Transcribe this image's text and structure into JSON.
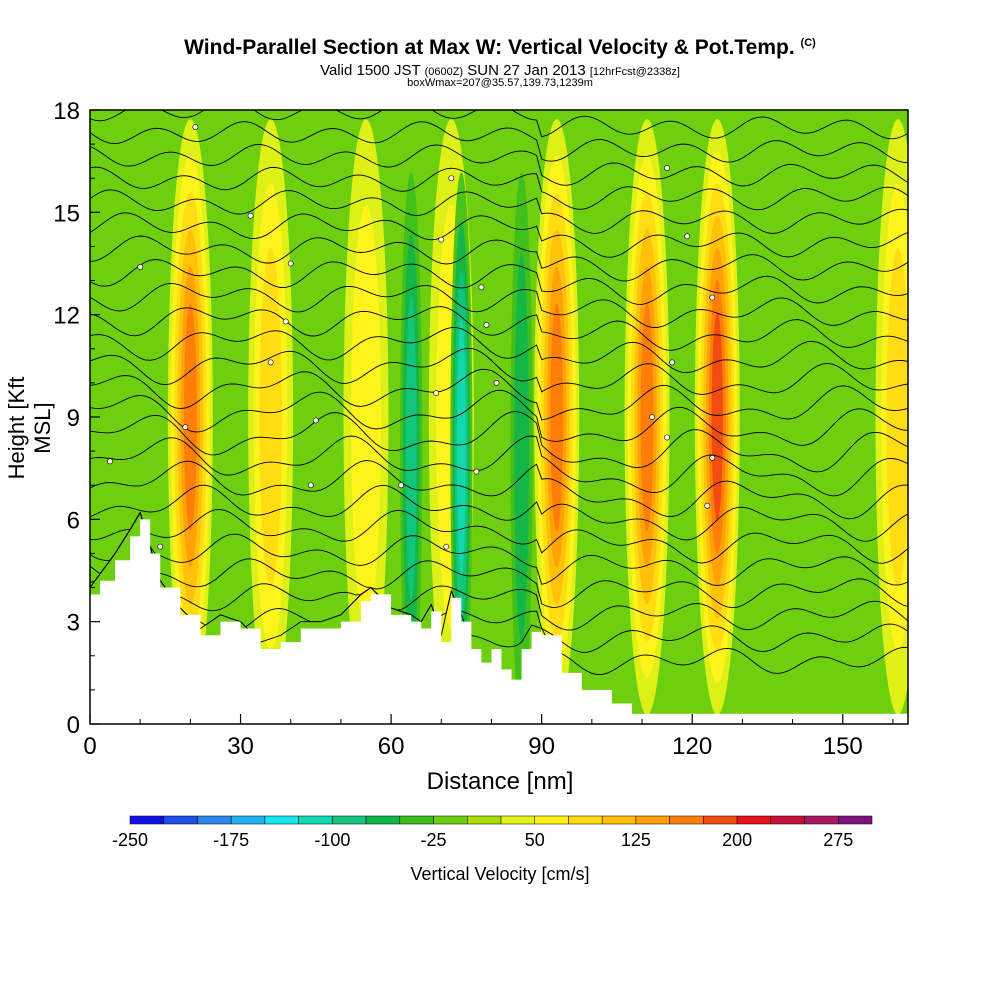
{
  "title": "Wind-Parallel Section at Max W: Vertical Velocity & Pot.Temp.",
  "title_mark": "(C)",
  "subtitle_valid": "Valid 1500 JST",
  "subtitle_zulu": "(0600Z)",
  "subtitle_date": "SUN 27 Jan 2013",
  "subtitle_fcst": "[12hrFcst@2338z]",
  "subtitle2": "boxWmax=207@35.57,139.73,1239m",
  "colors": {
    "colorbar": [
      "#1010e6",
      "#1e4fe8",
      "#2a84ea",
      "#20b2ef",
      "#17e6ef",
      "#14d9b4",
      "#12c67f",
      "#10b54a",
      "#3cbc1c",
      "#6dcf10",
      "#aadd07",
      "#e4f21a",
      "#fff21a",
      "#ffdb12",
      "#ffbf0a",
      "#ffa008",
      "#ff7c0a",
      "#f24912",
      "#e4121a",
      "#c7103c",
      "#a71863",
      "#7c127c"
    ],
    "field_low": "#6dcf10",
    "field_high": "#ffbf0a",
    "terrain": "#ffffff",
    "contour": "#000000"
  },
  "chart_data": {
    "type": "heatmap",
    "description_of_field": "vertical velocity shading with potential temperature contours",
    "xlabel": "Distance [nm]",
    "ylabel": "Height [Kft MSL]",
    "xlim": [
      0,
      163
    ],
    "ylim": [
      0,
      18
    ],
    "xticks": [
      0,
      30,
      60,
      90,
      120,
      150
    ],
    "yticks": [
      0,
      3,
      6,
      9,
      12,
      15,
      18
    ],
    "colorbar": {
      "label": "Vertical Velocity [cm/s]",
      "range": [
        -250,
        300
      ],
      "step": 25,
      "tick_values": [
        -250,
        -175,
        -100,
        -25,
        50,
        125,
        200,
        275
      ]
    },
    "updraft_columns": [
      {
        "x": 20,
        "peak_cm_s": 150
      },
      {
        "x": 36,
        "peak_cm_s": 75
      },
      {
        "x": 55,
        "peak_cm_s": 50
      },
      {
        "x": 72,
        "peak_cm_s": 50
      },
      {
        "x": 93,
        "peak_cm_s": 150
      },
      {
        "x": 111,
        "peak_cm_s": 150
      },
      {
        "x": 125,
        "peak_cm_s": 175
      },
      {
        "x": 161,
        "peak_cm_s": 75
      }
    ],
    "downdraft_columns": [
      {
        "x": 64,
        "min_cm_s": -75
      },
      {
        "x": 74,
        "min_cm_s": -100
      },
      {
        "x": 86,
        "min_cm_s": -50
      }
    ],
    "terrain_profile": {
      "x": [
        0,
        2,
        5,
        8,
        10,
        12,
        14,
        18,
        22,
        26,
        30,
        34,
        38,
        42,
        46,
        50,
        54,
        56,
        60,
        64,
        66,
        68,
        70,
        72,
        74,
        76,
        78,
        80,
        82,
        84,
        86,
        88,
        90,
        94,
        98,
        104,
        108,
        112,
        163
      ],
      "height_kft": [
        3.8,
        4.2,
        4.8,
        5.5,
        6.0,
        5.0,
        4.0,
        3.2,
        2.6,
        3.0,
        2.8,
        2.2,
        2.4,
        2.8,
        2.8,
        3.0,
        3.6,
        3.8,
        3.2,
        3.0,
        2.8,
        3.3,
        2.4,
        3.7,
        3.0,
        2.2,
        1.8,
        2.2,
        1.6,
        1.3,
        2.2,
        2.7,
        2.6,
        1.5,
        1.0,
        0.6,
        0.3,
        0.3,
        0.3
      ]
    },
    "theta_contour_labels": [
      {
        "x": 4,
        "y": 7.7
      },
      {
        "x": 10,
        "y": 13.4
      },
      {
        "x": 14,
        "y": 5.2
      },
      {
        "x": 19,
        "y": 8.7
      },
      {
        "x": 21,
        "y": 17.5
      },
      {
        "x": 32,
        "y": 14.9
      },
      {
        "x": 36,
        "y": 10.6
      },
      {
        "x": 39,
        "y": 11.8
      },
      {
        "x": 40,
        "y": 13.5
      },
      {
        "x": 44,
        "y": 7.0
      },
      {
        "x": 45,
        "y": 8.9
      },
      {
        "x": 62,
        "y": 7.0
      },
      {
        "x": 69,
        "y": 9.7
      },
      {
        "x": 70,
        "y": 14.2
      },
      {
        "x": 71,
        "y": 5.2
      },
      {
        "x": 72,
        "y": 16.0
      },
      {
        "x": 77,
        "y": 7.4
      },
      {
        "x": 78,
        "y": 12.8
      },
      {
        "x": 79,
        "y": 11.7
      },
      {
        "x": 81,
        "y": 10.0
      },
      {
        "x": 112,
        "y": 9.0
      },
      {
        "x": 115,
        "y": 16.3
      },
      {
        "x": 115,
        "y": 8.4
      },
      {
        "x": 116,
        "y": 10.6
      },
      {
        "x": 119,
        "y": 14.3
      },
      {
        "x": 123,
        "y": 6.4
      },
      {
        "x": 124,
        "y": 7.8
      },
      {
        "x": 124,
        "y": 12.5
      }
    ]
  }
}
